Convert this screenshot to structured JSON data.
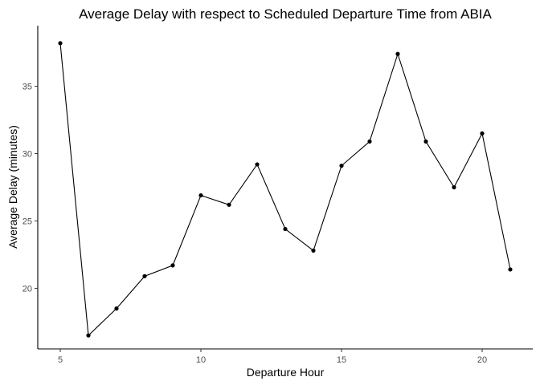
{
  "chart_data": {
    "type": "line",
    "title": "Average Delay with respect to Scheduled Departure Time from ABIA",
    "xlabel": "Departure Hour",
    "ylabel": "Average Delay (minutes)",
    "xlim": [
      4.2,
      21.8
    ],
    "ylim": [
      15.5,
      39.5
    ],
    "x_ticks": [
      5,
      10,
      15,
      20
    ],
    "y_ticks": [
      20,
      25,
      30,
      35
    ],
    "grid": false,
    "legend": "none",
    "series": [
      {
        "x": [
          5,
          6,
          7,
          8,
          9,
          10,
          11,
          12,
          13,
          14,
          15,
          16,
          17,
          18,
          19,
          20,
          21
        ],
        "values": [
          38.2,
          16.5,
          18.5,
          20.9,
          21.7,
          26.9,
          26.2,
          29.2,
          24.4,
          22.8,
          29.1,
          30.9,
          37.4,
          30.9,
          27.5,
          31.5,
          21.4
        ]
      }
    ],
    "colors": {
      "line": "#000000",
      "point": "#000000",
      "tick_label": "#4d4d4d"
    }
  }
}
